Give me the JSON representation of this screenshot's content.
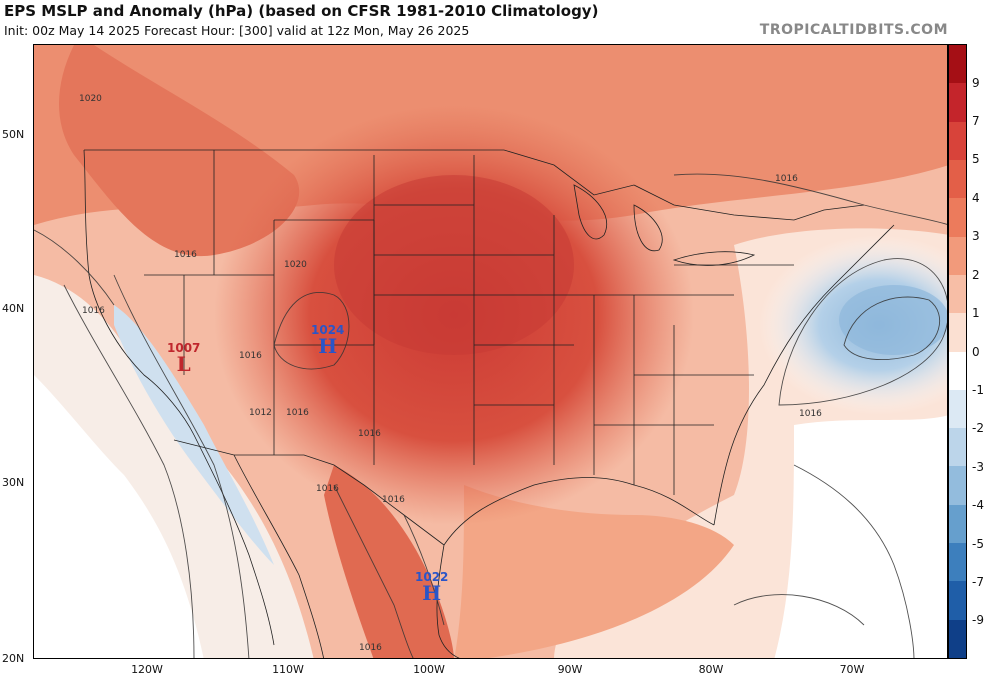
{
  "title": "EPS MSLP and Anomaly (hPa) (based on CFSR 1981-2010 Climatology)",
  "subtitle": "Init: 00z May 14 2025   Forecast Hour: [300]   valid at 12z Mon, May 26 2025",
  "brand": "TROPICALTIDBITS.COM",
  "lat_labels": [
    "50N",
    "40N",
    "30N",
    "20N"
  ],
  "lon_labels": [
    "120W",
    "110W",
    "100W",
    "90W",
    "80W",
    "70W"
  ],
  "colorbar": {
    "labels": [
      "9",
      "7",
      "5",
      "4",
      "3",
      "2",
      "1",
      "0",
      "-1",
      "-2",
      "-3",
      "-4",
      "-5",
      "-7",
      "-9"
    ],
    "colors": [
      "#a50f15",
      "#c4252b",
      "#d8433a",
      "#e35f48",
      "#ec7b5c",
      "#f29a7b",
      "#f7bea6",
      "#fbe0d2",
      "#ffffff",
      "#dce9f4",
      "#bcd5ea",
      "#93bcdd",
      "#669fcd",
      "#3d7fbd",
      "#1f5ea8",
      "#0f3f88"
    ]
  },
  "isobar_labels": [
    "1020",
    "1016",
    "1016",
    "1016",
    "1012",
    "1016",
    "1016",
    "1016",
    "1016",
    "1016",
    "1016",
    "1020",
    "1016"
  ],
  "pressure_systems": [
    {
      "type": "L",
      "value": "1007",
      "color": "#c0272d"
    },
    {
      "type": "H",
      "value": "1024",
      "color": "#2a55c8"
    },
    {
      "type": "H",
      "value": "1022",
      "color": "#2a55c8"
    }
  ]
}
